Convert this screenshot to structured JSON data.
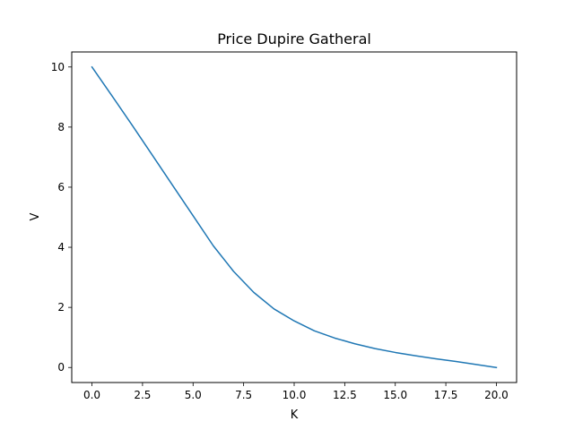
{
  "chart_data": {
    "type": "line",
    "title": "Price Dupire Gatheral",
    "xlabel": "K",
    "ylabel": "V",
    "xlim": [
      -1.0,
      21.0
    ],
    "ylim": [
      -0.5,
      10.5
    ],
    "grid": false,
    "xticks": [
      0.0,
      2.5,
      5.0,
      7.5,
      10.0,
      12.5,
      15.0,
      17.5,
      20.0
    ],
    "xtick_labels": [
      "0.0",
      "2.5",
      "5.0",
      "7.5",
      "10.0",
      "12.5",
      "15.0",
      "17.5",
      "20.0"
    ],
    "yticks": [
      0,
      2,
      4,
      6,
      8,
      10
    ],
    "ytick_labels": [
      "0",
      "2",
      "4",
      "6",
      "8",
      "10"
    ],
    "line_color": "#1f77b4",
    "series": [
      {
        "x": [
          0.0,
          1.0,
          2.0,
          3.0,
          4.0,
          5.0,
          6.0,
          7.0,
          8.0,
          9.0,
          10.0,
          11.0,
          12.0,
          13.0,
          14.0,
          15.0,
          16.0,
          17.0,
          18.0,
          19.0,
          20.0
        ],
        "values": [
          10.0,
          9.03,
          8.05,
          7.05,
          6.05,
          5.05,
          4.05,
          3.2,
          2.5,
          1.95,
          1.55,
          1.22,
          0.98,
          0.79,
          0.63,
          0.5,
          0.39,
          0.29,
          0.2,
          0.1,
          0.0
        ]
      }
    ]
  }
}
